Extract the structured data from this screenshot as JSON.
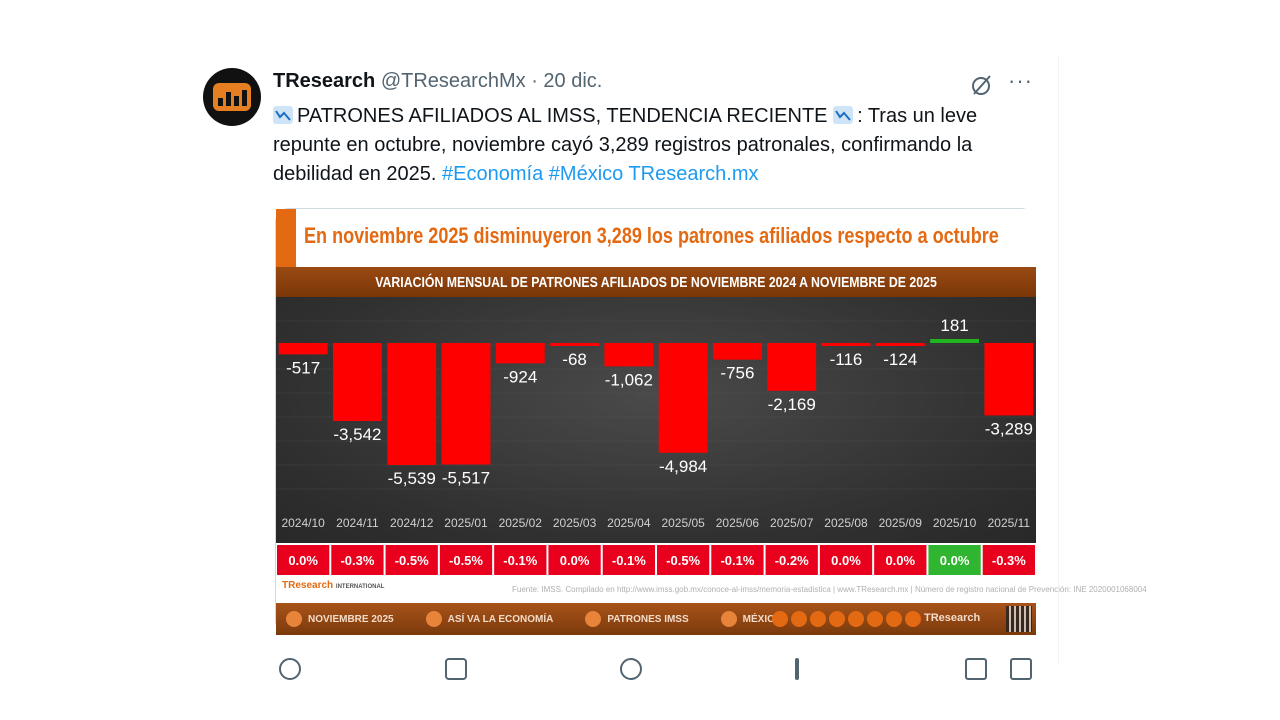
{
  "tweet": {
    "author_name": "TResearch",
    "handle": "@TResearchMx",
    "separator": "·",
    "date": "20 dic.",
    "text_title": "PATRONES AFILIADOS AL IMSS, TENDENCIA RECIENTE",
    "text_body": ": Tras un leve repunte en octubre, noviembre cayó 3,289 registros patronales, confirmando la debilidad en 2025.",
    "hashtags": [
      "#Economía",
      "#México",
      "TResearch.mx"
    ],
    "more_label": "···"
  },
  "infographic": {
    "headline": "En noviembre 2025 disminuyeron 3,289 los patrones afiliados respecto a octubre",
    "subtitle": "VARIACIÓN MENSUAL DE PATRONES AFILIADOS DE NOVIEMBRE 2024 A NOVIEMBRE DE 2025",
    "source_text": "Fuente: IMSS. Compilado en http://www.imss.gob.mx/conoce-al-imss/memoria-estadistica | www.TResearch.mx | Número de registro nacional de Prevención: INE 2020001068004",
    "logo_text": "TResearch",
    "logo_sub": "INTERNATIONAL",
    "bottom_nav": [
      "NOVIEMBRE 2025",
      "ASÍ VA LA ECONOMÍA",
      "PATRONES IMSS",
      "MÉXICO"
    ],
    "brand_mark": "TResearch"
  },
  "chart_data": {
    "type": "bar",
    "categories": [
      "2024/10",
      "2024/11",
      "2024/12",
      "2025/01",
      "2025/02",
      "2025/03",
      "2025/04",
      "2025/05",
      "2025/06",
      "2025/07",
      "2025/08",
      "2025/09",
      "2025/10",
      "2025/11"
    ],
    "values": [
      -517,
      -3542,
      -5539,
      -5517,
      -924,
      -68,
      -1062,
      -4984,
      -756,
      -2169,
      -116,
      -124,
      181,
      -3289
    ],
    "value_labels": [
      "-517",
      "-3,542",
      "-5,539",
      "-5,517",
      "-924",
      "-68",
      "-1,062",
      "-4,984",
      "-756",
      "-2,169",
      "-116",
      "-124",
      "181",
      "-3,289"
    ],
    "pct_labels": [
      "0.0%",
      "-0.3%",
      "-0.5%",
      "-0.5%",
      "-0.1%",
      "0.0%",
      "-0.1%",
      "-0.5%",
      "-0.1%",
      "-0.2%",
      "0.0%",
      "0.0%",
      "0.0%",
      "-0.3%"
    ],
    "colors": {
      "negative": "#ff0000",
      "positive": "#22b522",
      "pct_negative": "#e8001c",
      "pct_positive": "#2fb52f"
    },
    "grid": true
  }
}
